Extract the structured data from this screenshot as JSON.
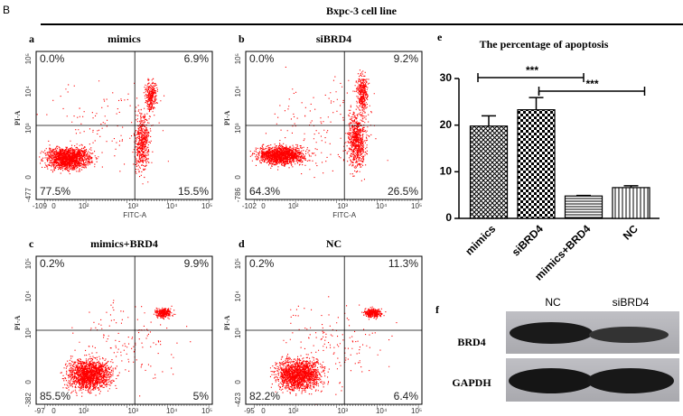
{
  "header": {
    "panel": "B",
    "title": "Bxpc-3 cell line"
  },
  "flow_panels": [
    {
      "letter": "a",
      "title": "mimics",
      "quadrants": {
        "ul": "0.0%",
        "ur": "6.9%",
        "ll": "77.5%",
        "lr": "15.5%"
      },
      "x_label": "FITC-A",
      "y_label": "PI-A",
      "x_ticks": [
        "-109",
        "0",
        "10²",
        "10³",
        "10⁴",
        "10⁵"
      ],
      "y_ticks": [
        "10⁵",
        "10⁴",
        "10³",
        "0",
        "-477"
      ]
    },
    {
      "letter": "b",
      "title": "siBRD4",
      "quadrants": {
        "ul": "0.0%",
        "ur": "9.2%",
        "ll": "64.3%",
        "lr": "26.5%"
      },
      "x_label": "FITC-A",
      "y_label": "PI-A",
      "x_ticks": [
        "-102",
        "0",
        "10²",
        "10³",
        "10⁴",
        "10⁵"
      ],
      "y_ticks": [
        "10⁵",
        "10⁴",
        "10³",
        "0",
        "-786"
      ]
    },
    {
      "letter": "c",
      "title": "mimics+BRD4",
      "quadrants": {
        "ul": "0.2%",
        "ur": "9.9%",
        "ll": "85.5%",
        "lr": "5%"
      },
      "x_label": "FITC-A",
      "y_label": "PI-A",
      "x_ticks": [
        "-97",
        "0",
        "10²",
        "10³",
        "10⁴",
        "10⁵"
      ],
      "y_ticks": [
        "10⁵",
        "10⁴",
        "10³",
        "0",
        "-382"
      ]
    },
    {
      "letter": "d",
      "title": "NC",
      "quadrants": {
        "ul": "0.2%",
        "ur": "11.3%",
        "ll": "82.2%",
        "lr": "6.4%"
      },
      "x_label": "FITC-A",
      "y_label": "PI-A",
      "x_ticks": [
        "-95",
        "0",
        "10²",
        "10³",
        "10⁴",
        "10⁵"
      ],
      "y_ticks": [
        "10⁵",
        "10⁴",
        "10³",
        "0",
        "-423"
      ]
    }
  ],
  "chart_data": {
    "type": "bar",
    "letter": "e",
    "title": "The percentage of apoptosis",
    "categories": [
      "mimics",
      "siBRD4",
      "mimics+BRD4",
      "NC"
    ],
    "values": [
      19.8,
      23.3,
      4.8,
      6.6
    ],
    "errors": [
      2.2,
      2.6,
      0.1,
      0.4
    ],
    "patterns": [
      "crosshatch",
      "checker",
      "hlines",
      "vlines"
    ],
    "ylim": [
      0,
      30
    ],
    "yticks": [
      0,
      10,
      20,
      30
    ],
    "annotations": [
      "***",
      "***"
    ]
  },
  "blot": {
    "letter": "f",
    "lanes": [
      "NC",
      "siBRD4"
    ],
    "rows": [
      "BRD4",
      "GAPDH"
    ]
  }
}
